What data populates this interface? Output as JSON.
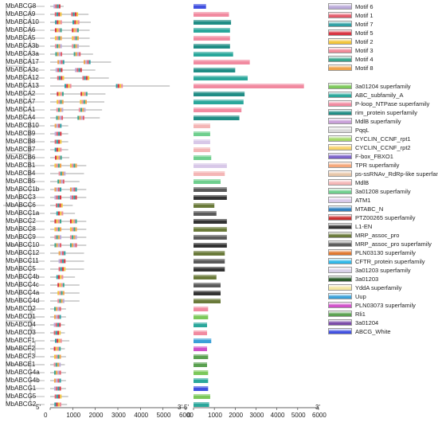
{
  "genes": [
    {
      "name": "MbABCG8",
      "len": 600,
      "group": "G"
    },
    {
      "name": "MbABCA9",
      "len": 1700,
      "group": "A"
    },
    {
      "name": "MbABCA10",
      "len": 1800,
      "group": "A"
    },
    {
      "name": "MbABCA6",
      "len": 1750,
      "group": "A"
    },
    {
      "name": "MbABCA5",
      "len": 1750,
      "group": "A"
    },
    {
      "name": "MbABCA3b",
      "len": 1750,
      "group": "A"
    },
    {
      "name": "MbABCA3a",
      "len": 1900,
      "group": "A"
    },
    {
      "name": "MbABCA17",
      "len": 2700,
      "group": "A"
    },
    {
      "name": "MbABCA3c",
      "len": 2000,
      "group": "A"
    },
    {
      "name": "MbABCA12",
      "len": 2600,
      "group": "A"
    },
    {
      "name": "MbABCA13",
      "len": 5300,
      "group": "A"
    },
    {
      "name": "MbABCA2",
      "len": 2450,
      "group": "A"
    },
    {
      "name": "MbABCA7",
      "len": 2400,
      "group": "A"
    },
    {
      "name": "MbABCA1",
      "len": 2300,
      "group": "A"
    },
    {
      "name": "MbABCA4",
      "len": 2200,
      "group": "A"
    },
    {
      "name": "MbABCB10",
      "len": 800,
      "group": "B"
    },
    {
      "name": "MbABCB9",
      "len": 800,
      "group": "B"
    },
    {
      "name": "MbABCB8",
      "len": 800,
      "group": "B"
    },
    {
      "name": "MbABCB7",
      "len": 800,
      "group": "B"
    },
    {
      "name": "MbABCB6",
      "len": 850,
      "group": "B"
    },
    {
      "name": "MbABCB1",
      "len": 1600,
      "group": "B"
    },
    {
      "name": "MbABCB4",
      "len": 1500,
      "group": "B"
    },
    {
      "name": "MbABCB5",
      "len": 1300,
      "group": "B"
    },
    {
      "name": "MbABCC1b",
      "len": 1600,
      "group": "C"
    },
    {
      "name": "MbABCC3",
      "len": 1600,
      "group": "C"
    },
    {
      "name": "MbABCC6",
      "len": 1000,
      "group": "C"
    },
    {
      "name": "MbABCC1a",
      "len": 1100,
      "group": "C"
    },
    {
      "name": "MbABCC2",
      "len": 1600,
      "group": "C"
    },
    {
      "name": "MbABCC8",
      "len": 1600,
      "group": "C"
    },
    {
      "name": "MbABCC9",
      "len": 1600,
      "group": "C"
    },
    {
      "name": "MbABCC10",
      "len": 1600,
      "group": "C"
    },
    {
      "name": "MbABCC12",
      "len": 1500,
      "group": "C"
    },
    {
      "name": "MbABCC11",
      "len": 1500,
      "group": "C"
    },
    {
      "name": "MbABCC5",
      "len": 1500,
      "group": "C"
    },
    {
      "name": "MbABCC4b",
      "len": 1100,
      "group": "C"
    },
    {
      "name": "MbABCC4c",
      "len": 1300,
      "group": "C"
    },
    {
      "name": "MbABCC4a",
      "len": 1300,
      "group": "C"
    },
    {
      "name": "MbABCC4d",
      "len": 1300,
      "group": "C"
    },
    {
      "name": "MbABCD2",
      "len": 700,
      "group": "D"
    },
    {
      "name": "MbABCD1",
      "len": 700,
      "group": "D"
    },
    {
      "name": "MbABCD4",
      "len": 650,
      "group": "D"
    },
    {
      "name": "MbABCD3",
      "len": 650,
      "group": "D"
    },
    {
      "name": "MbABCF1",
      "len": 850,
      "group": "F"
    },
    {
      "name": "MbABCF2",
      "len": 650,
      "group": "F"
    },
    {
      "name": "MbABCF3",
      "len": 700,
      "group": "F"
    },
    {
      "name": "MbABCE1",
      "len": 650,
      "group": "E"
    },
    {
      "name": "MbABCG4a",
      "len": 700,
      "group": "G"
    },
    {
      "name": "MbABCG4b",
      "len": 700,
      "group": "G"
    },
    {
      "name": "MbABCG1",
      "len": 700,
      "group": "G"
    },
    {
      "name": "MbABCG5",
      "len": 800,
      "group": "G"
    },
    {
      "name": "MbABCG2",
      "len": 750,
      "group": "G"
    }
  ],
  "axis_left": {
    "ticks": [
      "0",
      "1000",
      "2000",
      "3000",
      "4000",
      "5000",
      "6000"
    ],
    "end_label": "3'",
    "start_label": "5'"
  },
  "axis_right": {
    "ticks": [
      "0",
      "1000",
      "2000",
      "3000",
      "4000",
      "5000",
      "6000"
    ],
    "end_label": "3'",
    "start_label": "5'"
  },
  "motif_legend": [
    {
      "label": "Motif 6",
      "color": "#b9a8d8"
    },
    {
      "label": "Motif 1",
      "color": "#e35b6a"
    },
    {
      "label": "Motif 7",
      "color": "#2f9fa3"
    },
    {
      "label": "Motif 5",
      "color": "#d8323f"
    },
    {
      "label": "Motif 2",
      "color": "#f2c53b"
    },
    {
      "label": "Motif 3",
      "color": "#f08a99"
    },
    {
      "label": "Motif 4",
      "color": "#3aa68f"
    },
    {
      "label": "Motif 8",
      "color": "#f0a24a"
    }
  ],
  "domain_legend": [
    {
      "label": "3a01204 superfamily",
      "color": "#7cc85a"
    },
    {
      "label": "ABC_subfamily_A",
      "color": "#2aa79b"
    },
    {
      "label": "P-loop_NTPase superfamily",
      "color": "#f18aa0"
    },
    {
      "label": "rim_protein superfamily",
      "color": "#208d85"
    },
    {
      "label": "MdlB superfamily",
      "color": "#c8a0d8"
    },
    {
      "label": "PqqL",
      "color": "#d8d8d8"
    },
    {
      "label": "CYCLIN_CCNF_rpt1",
      "color": "#a6d96a"
    },
    {
      "label": "CYCLIN_CCNF_rpt2",
      "color": "#f7d26a"
    },
    {
      "label": "F-box_FBXO1",
      "color": "#7b61c8"
    },
    {
      "label": "TPR superfamily",
      "color": "#f5a77a"
    },
    {
      "label": "ps-ssRNAv_RdRp-like superfamily",
      "color": "#e8c6a8"
    },
    {
      "label": "MdlB",
      "color": "#f4b6b6"
    },
    {
      "label": "3a01208 superfamily",
      "color": "#6fcf8e"
    },
    {
      "label": "ATM1",
      "color": "#d8c8e8"
    },
    {
      "label": "MTABC_N",
      "color": "#2f7fbf"
    },
    {
      "label": "PTZ00265 superfamily",
      "color": "#c83030"
    },
    {
      "label": "L1-EN",
      "color": "#333333"
    },
    {
      "label": "MRP_assoc_pro",
      "color": "#6a7a3a"
    },
    {
      "label": "MRP_assoc_pro superfamily",
      "color": "#5a5a5a"
    },
    {
      "label": "PLN03130 superfamily",
      "color": "#e07830"
    },
    {
      "label": "CFTR_protein superfamily",
      "color": "#30b8e8"
    },
    {
      "label": "3a01203 superfamily",
      "color": "#d8d0e8"
    },
    {
      "label": "3a01203",
      "color": "#2a5a2a"
    },
    {
      "label": "YddA superfamily",
      "color": "#f2e6a0"
    },
    {
      "label": "Uup",
      "color": "#3aa0d8"
    },
    {
      "label": "PLN03073 superfamily",
      "color": "#d050c8"
    },
    {
      "label": "Rli1",
      "color": "#5aa050"
    },
    {
      "label": "3a01204",
      "color": "#7a4aa8"
    },
    {
      "label": "ABCG_White",
      "color": "#4050e0"
    }
  ]
}
